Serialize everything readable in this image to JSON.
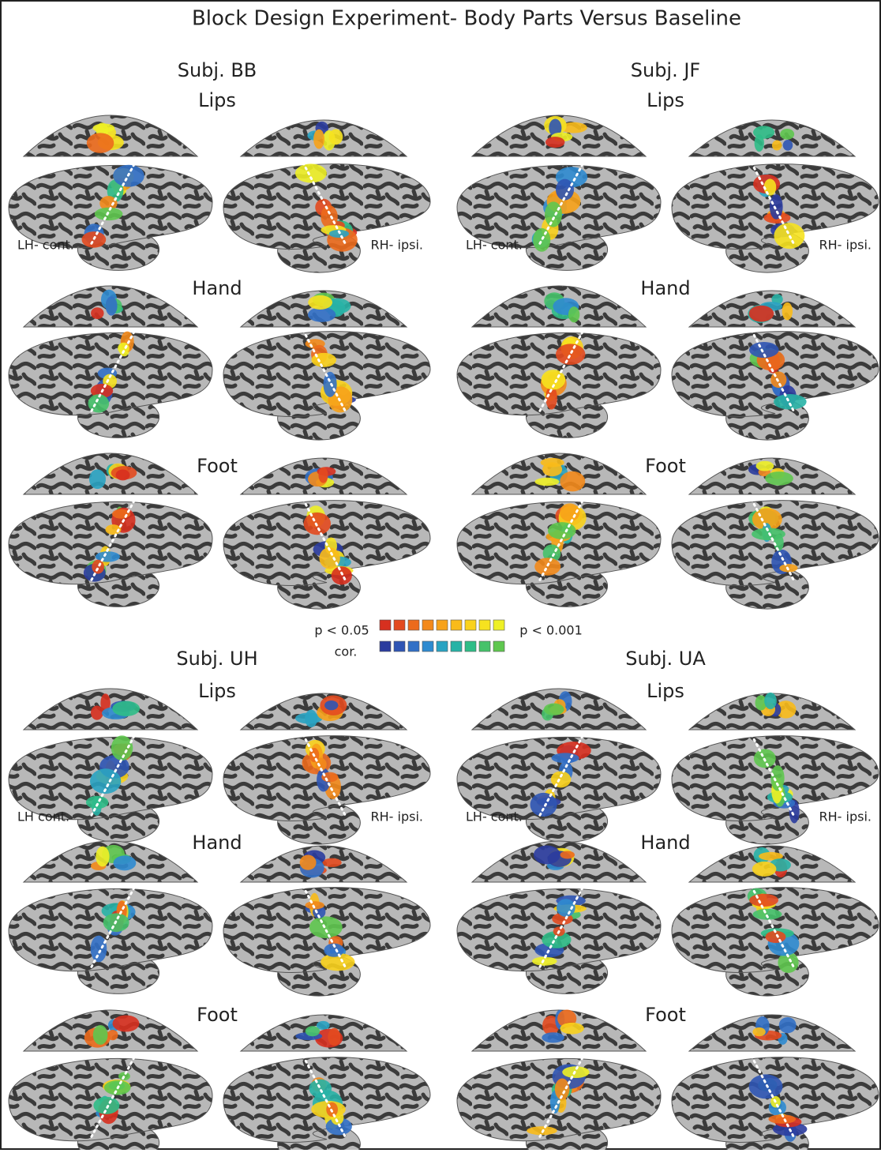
{
  "title": "Block Design Experiment- Body Parts Versus Baseline",
  "panels": [
    {
      "subject": "Subj. BB",
      "conditions": [
        "Lips",
        "Hand",
        "Foot"
      ],
      "left_label": "LH- cont.",
      "right_label": "RH- ipsi."
    },
    {
      "subject": "Subj. JF",
      "conditions": [
        "Lips",
        "Hand",
        "Foot"
      ],
      "left_label": "LH- cont.",
      "right_label": "RH- ipsi."
    },
    {
      "subject": "Subj. UH",
      "conditions": [
        "Lips",
        "Hand",
        "Foot"
      ],
      "left_label": "LH cont.",
      "right_label": "RH- ipsi."
    },
    {
      "subject": "Subj. UA",
      "conditions": [
        "Lips",
        "Hand",
        "Foot"
      ],
      "left_label": "LH- cont.",
      "right_label": "RH- ipsi."
    }
  ],
  "legend": {
    "low": "p < 0.05",
    "high": "p < 0.001",
    "correction": "cor.",
    "warm_colors": [
      "#d7301f",
      "#e34a1f",
      "#ec6a1c",
      "#f3891b",
      "#f7a21a",
      "#f9bb1a",
      "#fad21c",
      "#f6e21f",
      "#eef026"
    ],
    "cool_colors": [
      "#2b3c9e",
      "#2f55b4",
      "#3270c6",
      "#2f8bd0",
      "#2aa3c2",
      "#28b3a6",
      "#2fbd87",
      "#46c26a",
      "#5fc74f"
    ]
  }
}
